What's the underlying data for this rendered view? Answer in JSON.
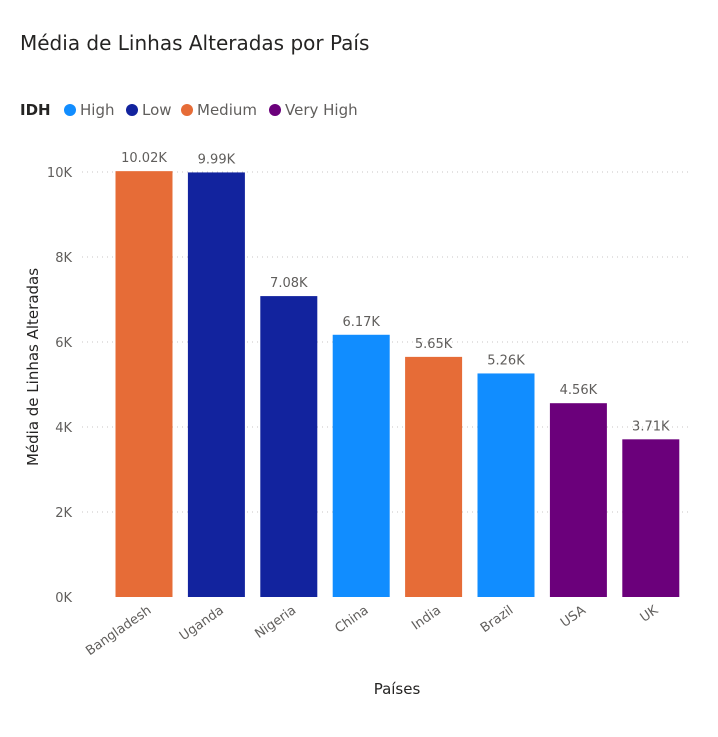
{
  "chart_data": {
    "type": "bar",
    "title": "Média de Linhas Alteradas por País",
    "xlabel": "Países",
    "ylabel": "Média de Linhas Alteradas",
    "ylim": [
      0,
      10000
    ],
    "yticks": [
      0,
      2000,
      4000,
      6000,
      8000,
      10000
    ],
    "ytick_labels": [
      "0K",
      "2K",
      "4K",
      "6K",
      "8K",
      "10K"
    ],
    "grid": true,
    "legend": {
      "title": "IDH",
      "placement": "top-left",
      "entries": [
        {
          "label": "High",
          "color": "#118DFF"
        },
        {
          "label": "Low",
          "color": "#12239E"
        },
        {
          "label": "Medium",
          "color": "#E66C37"
        },
        {
          "label": "Very High",
          "color": "#6B007B"
        }
      ]
    },
    "categories": [
      "Bangladesh",
      "Uganda",
      "Nigeria",
      "China",
      "India",
      "Brazil",
      "USA",
      "UK"
    ],
    "values": [
      10020,
      9990,
      7080,
      6170,
      5650,
      5260,
      4560,
      3710
    ],
    "data_labels": [
      "10.02K",
      "9.99K",
      "7.08K",
      "6.17K",
      "5.65K",
      "5.26K",
      "4.56K",
      "3.71K"
    ],
    "groups": [
      "Medium",
      "Low",
      "Low",
      "High",
      "Medium",
      "High",
      "Very High",
      "Very High"
    ]
  }
}
